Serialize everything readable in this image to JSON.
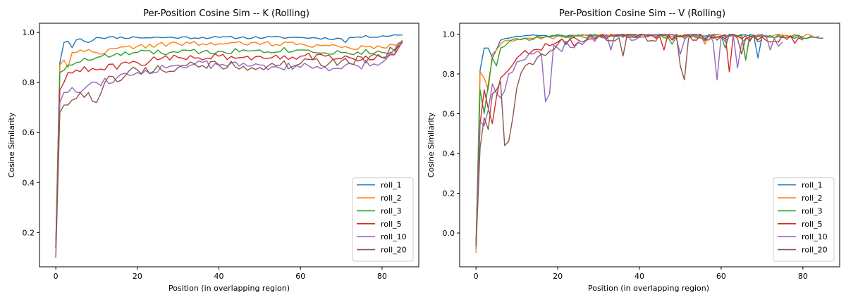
{
  "chart_data": [
    {
      "type": "line",
      "title": "Per-Position Cosine Sim -- K (Rolling)",
      "xlabel": "Position (in overlapping region)",
      "ylabel": "Cosine Similarity",
      "xlim": [
        -4,
        89
      ],
      "ylim": [
        0.063,
        1.037
      ],
      "xticks": [
        0,
        20,
        40,
        60,
        80
      ],
      "yticks": [
        0.2,
        0.4,
        0.6,
        0.8,
        1.0
      ],
      "ytick_labels": [
        "0.2",
        "0.4",
        "0.6",
        "0.8",
        "1.0"
      ],
      "legend": "lower-right",
      "series": [
        {
          "name": "roll_1",
          "color": "#1f77b4",
          "x_end": 85,
          "anchors": [
            [
              0,
              0.14
            ],
            [
              1,
              0.88
            ],
            [
              2,
              0.96
            ],
            [
              3,
              0.965
            ],
            [
              4,
              0.94
            ],
            [
              5,
              0.97
            ],
            [
              6,
              0.975
            ],
            [
              8,
              0.96
            ],
            [
              10,
              0.98
            ],
            [
              20,
              0.98
            ],
            [
              40,
              0.98
            ],
            [
              60,
              0.98
            ],
            [
              70,
              0.975
            ],
            [
              71,
              0.96
            ],
            [
              72,
              0.98
            ],
            [
              85,
              0.99
            ]
          ],
          "noise": 0.005,
          "seed": 11
        },
        {
          "name": "roll_2",
          "color": "#ff7f0e",
          "x_end": 85,
          "anchors": [
            [
              0,
              0.14
            ],
            [
              1,
              0.87
            ],
            [
              2,
              0.89
            ],
            [
              3,
              0.86
            ],
            [
              4,
              0.92
            ],
            [
              6,
              0.93
            ],
            [
              10,
              0.92
            ],
            [
              20,
              0.945
            ],
            [
              30,
              0.955
            ],
            [
              40,
              0.955
            ],
            [
              60,
              0.955
            ],
            [
              70,
              0.94
            ],
            [
              80,
              0.94
            ],
            [
              84,
              0.95
            ],
            [
              85,
              0.97
            ]
          ],
          "noise": 0.01,
          "seed": 22
        },
        {
          "name": "roll_3",
          "color": "#2ca02c",
          "x_end": 85,
          "anchors": [
            [
              0,
              0.14
            ],
            [
              1,
              0.84
            ],
            [
              3,
              0.87
            ],
            [
              5,
              0.88
            ],
            [
              10,
              0.9
            ],
            [
              20,
              0.92
            ],
            [
              30,
              0.92
            ],
            [
              40,
              0.925
            ],
            [
              50,
              0.93
            ],
            [
              60,
              0.93
            ],
            [
              70,
              0.92
            ],
            [
              80,
              0.92
            ],
            [
              83,
              0.93
            ],
            [
              85,
              0.965
            ]
          ],
          "noise": 0.012,
          "seed": 33
        },
        {
          "name": "roll_5",
          "color": "#d62728",
          "x_end": 85,
          "anchors": [
            [
              0,
              0.14
            ],
            [
              1,
              0.77
            ],
            [
              2,
              0.8
            ],
            [
              3,
              0.84
            ],
            [
              5,
              0.85
            ],
            [
              10,
              0.85
            ],
            [
              20,
              0.88
            ],
            [
              30,
              0.9
            ],
            [
              40,
              0.905
            ],
            [
              50,
              0.905
            ],
            [
              60,
              0.905
            ],
            [
              70,
              0.895
            ],
            [
              80,
              0.9
            ],
            [
              83,
              0.91
            ],
            [
              85,
              0.965
            ]
          ],
          "noise": 0.015,
          "seed": 44
        },
        {
          "name": "roll_10",
          "color": "#9467bd",
          "x_end": 85,
          "anchors": [
            [
              0,
              0.14
            ],
            [
              1,
              0.72
            ],
            [
              2,
              0.76
            ],
            [
              4,
              0.78
            ],
            [
              6,
              0.76
            ],
            [
              8,
              0.79
            ],
            [
              10,
              0.8
            ],
            [
              20,
              0.84
            ],
            [
              30,
              0.87
            ],
            [
              40,
              0.87
            ],
            [
              50,
              0.87
            ],
            [
              60,
              0.86
            ],
            [
              70,
              0.855
            ],
            [
              80,
              0.88
            ],
            [
              85,
              0.96
            ]
          ],
          "noise": 0.018,
          "seed": 55
        },
        {
          "name": "roll_20",
          "color": "#8c564b",
          "x_end": 85,
          "anchors": [
            [
              0,
              0.1
            ],
            [
              1,
              0.68
            ],
            [
              2,
              0.71
            ],
            [
              4,
              0.73
            ],
            [
              6,
              0.76
            ],
            [
              8,
              0.76
            ],
            [
              10,
              0.72
            ],
            [
              12,
              0.8
            ],
            [
              20,
              0.85
            ],
            [
              30,
              0.86
            ],
            [
              40,
              0.87
            ],
            [
              50,
              0.86
            ],
            [
              60,
              0.875
            ],
            [
              70,
              0.885
            ],
            [
              80,
              0.9
            ],
            [
              85,
              0.96
            ]
          ],
          "noise": 0.02,
          "seed": 66
        }
      ]
    },
    {
      "type": "line",
      "title": "Per-Position Cosine Sim -- V (Rolling)",
      "xlabel": "Position (in overlapping region)",
      "ylabel": "Cosine Similarity",
      "xlim": [
        -4,
        89
      ],
      "ylim": [
        -0.17,
        1.055
      ],
      "xticks": [
        0,
        20,
        40,
        60,
        80
      ],
      "yticks": [
        0.0,
        0.2,
        0.4,
        0.6,
        0.8,
        1.0
      ],
      "ytick_labels": [
        "0.0",
        "0.2",
        "0.4",
        "0.6",
        "0.8",
        "1.0"
      ],
      "legend": "lower-right",
      "series": [
        {
          "name": "roll_1",
          "color": "#1f77b4",
          "x_end": 85,
          "anchors": [
            [
              0,
              -0.08
            ],
            [
              1,
              0.82
            ],
            [
              2,
              0.93
            ],
            [
              3,
              0.93
            ],
            [
              4,
              0.88
            ],
            [
              6,
              0.97
            ],
            [
              8,
              0.98
            ],
            [
              10,
              0.99
            ],
            [
              30,
              0.995
            ],
            [
              60,
              0.995
            ],
            [
              68,
              0.99
            ],
            [
              69,
              0.88
            ],
            [
              70,
              0.99
            ],
            [
              85,
              0.98
            ]
          ],
          "noise": 0.006,
          "seed": 71,
          "dips": []
        },
        {
          "name": "roll_2",
          "color": "#ff7f0e",
          "x_end": 84,
          "anchors": [
            [
              0,
              -0.1
            ],
            [
              1,
              0.81
            ],
            [
              2,
              0.78
            ],
            [
              3,
              0.72
            ],
            [
              4,
              0.9
            ],
            [
              6,
              0.95
            ],
            [
              8,
              0.97
            ],
            [
              12,
              0.98
            ],
            [
              30,
              0.995
            ],
            [
              60,
              0.995
            ],
            [
              84,
              0.99
            ]
          ],
          "noise": 0.01,
          "seed": 72,
          "dips": [
            [
              66,
              0.87
            ],
            [
              56,
              0.95
            ]
          ]
        },
        {
          "name": "roll_3",
          "color": "#2ca02c",
          "x_end": 82,
          "anchors": [
            [
              0,
              -0.05
            ],
            [
              1,
              0.72
            ],
            [
              2,
              0.6
            ],
            [
              3,
              0.75
            ],
            [
              4,
              0.88
            ],
            [
              5,
              0.84
            ],
            [
              6,
              0.93
            ],
            [
              8,
              0.96
            ],
            [
              12,
              0.98
            ],
            [
              30,
              0.99
            ],
            [
              60,
              0.99
            ],
            [
              82,
              0.99
            ]
          ],
          "noise": 0.012,
          "seed": 73,
          "dips": [
            [
              66,
              0.87
            ],
            [
              61,
              0.93
            ],
            [
              48,
              0.95
            ]
          ]
        },
        {
          "name": "roll_5",
          "color": "#d62728",
          "x_end": 80,
          "anchors": [
            [
              0,
              -0.05
            ],
            [
              1,
              0.55
            ],
            [
              2,
              0.72
            ],
            [
              4,
              0.55
            ],
            [
              6,
              0.78
            ],
            [
              8,
              0.82
            ],
            [
              10,
              0.88
            ],
            [
              14,
              0.92
            ],
            [
              20,
              0.96
            ],
            [
              25,
              0.96
            ],
            [
              30,
              0.99
            ],
            [
              60,
              0.99
            ],
            [
              80,
              0.97
            ]
          ],
          "noise": 0.02,
          "seed": 74,
          "dips": [
            [
              62,
              0.81
            ],
            [
              46,
              0.92
            ]
          ]
        },
        {
          "name": "roll_10",
          "color": "#9467bd",
          "x_end": 75,
          "anchors": [
            [
              0,
              -0.07
            ],
            [
              1,
              0.56
            ],
            [
              2,
              0.54
            ],
            [
              3,
              0.62
            ],
            [
              4,
              0.75
            ],
            [
              6,
              0.68
            ],
            [
              8,
              0.8
            ],
            [
              10,
              0.86
            ],
            [
              14,
              0.9
            ],
            [
              20,
              0.93
            ],
            [
              30,
              0.99
            ],
            [
              60,
              0.99
            ],
            [
              75,
              0.96
            ]
          ],
          "noise": 0.03,
          "seed": 75,
          "dips": [
            [
              18,
              0.7
            ],
            [
              17,
              0.66
            ],
            [
              33,
              0.92
            ],
            [
              50,
              0.9
            ],
            [
              59,
              0.77
            ],
            [
              64,
              0.83
            ],
            [
              72,
              0.92
            ]
          ]
        },
        {
          "name": "roll_20",
          "color": "#8c564b",
          "x_end": 70,
          "anchors": [
            [
              0,
              -0.07
            ],
            [
              1,
              0.43
            ],
            [
              2,
              0.58
            ],
            [
              3,
              0.52
            ],
            [
              4,
              0.7
            ],
            [
              6,
              0.76
            ],
            [
              7,
              0.44
            ],
            [
              8,
              0.46
            ],
            [
              10,
              0.73
            ],
            [
              12,
              0.84
            ],
            [
              16,
              0.9
            ],
            [
              20,
              0.95
            ],
            [
              25,
              0.97
            ],
            [
              30,
              0.99
            ],
            [
              60,
              0.99
            ],
            [
              70,
              0.97
            ]
          ],
          "noise": 0.025,
          "seed": 76,
          "dips": [
            [
              36,
              0.89
            ],
            [
              50,
              0.84
            ],
            [
              51,
              0.77
            ],
            [
              65,
              0.9
            ]
          ]
        }
      ]
    }
  ]
}
